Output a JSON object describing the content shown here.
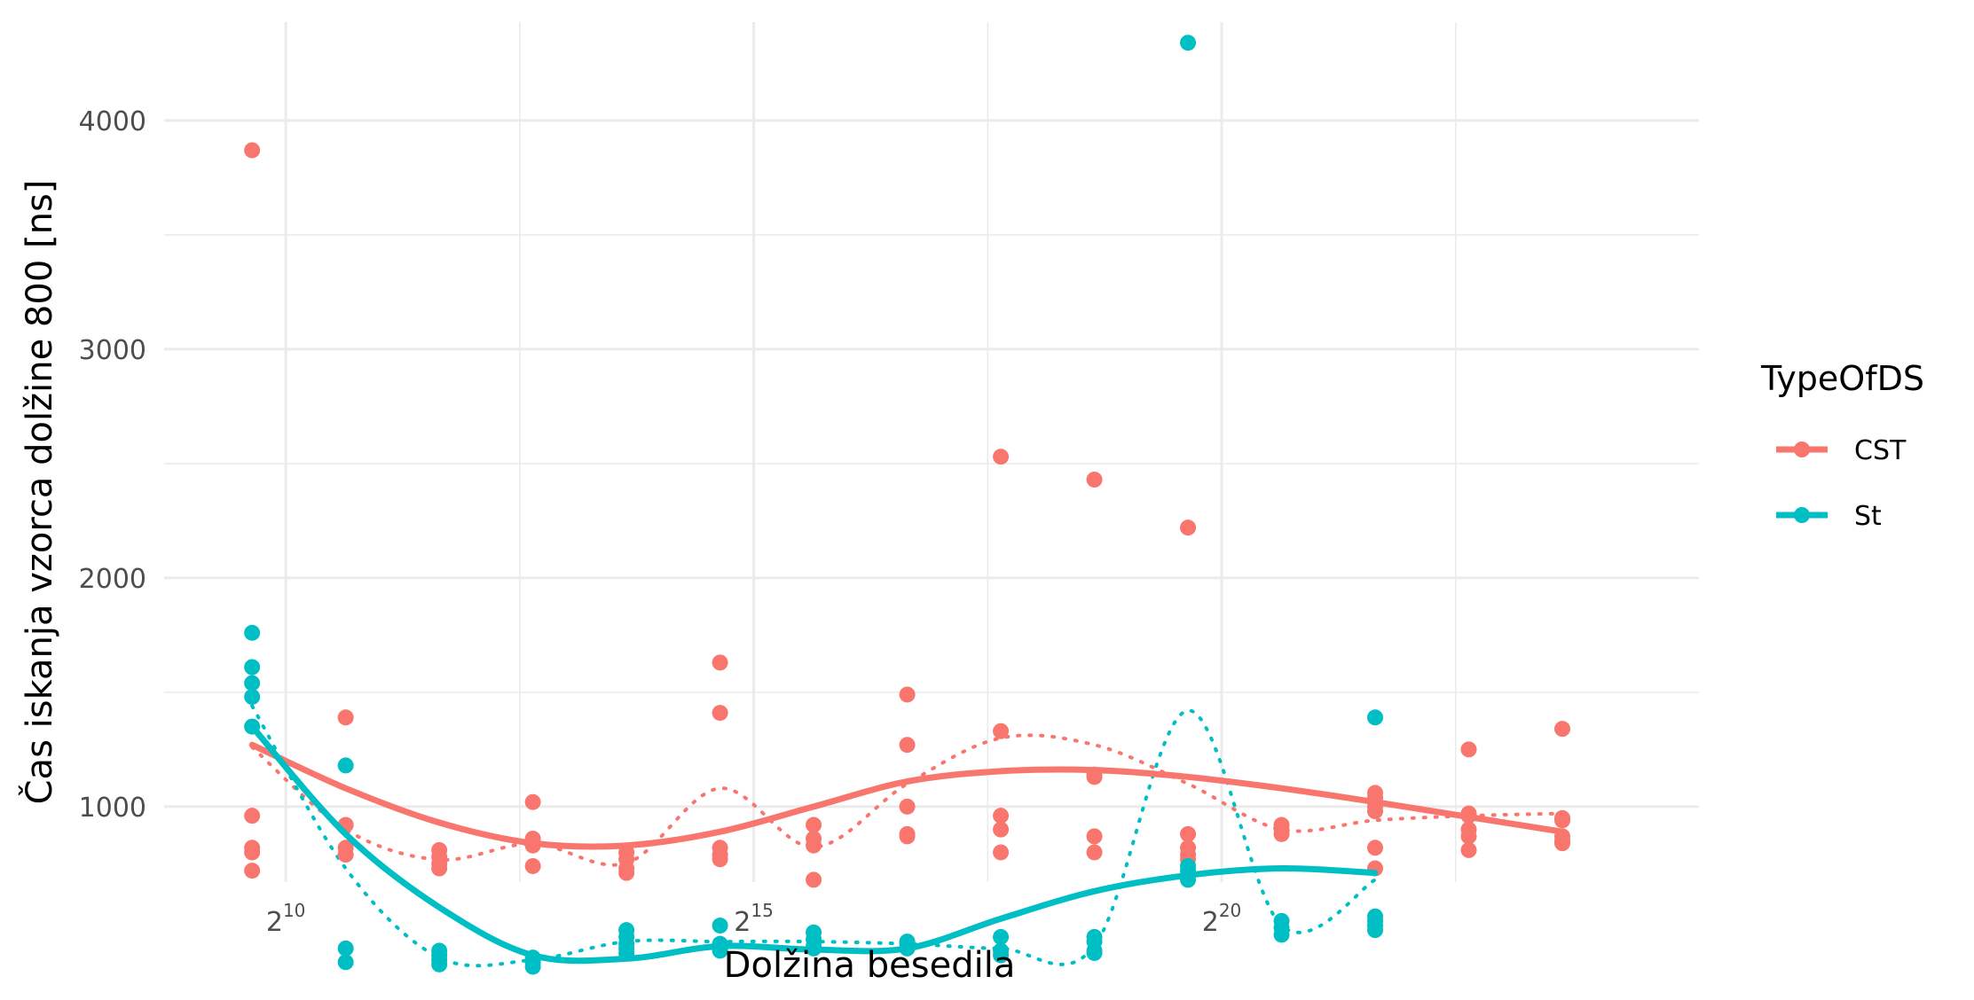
{
  "chart_data": {
    "type": "scatter",
    "xlabel": "Dolžina besedila",
    "ylabel": "Čas iskanja vzorca dolžine 800 [ns]",
    "x_scale": "log2",
    "x_ticks": [
      {
        "value": 1024,
        "base": "2",
        "exp": "10"
      },
      {
        "value": 32768,
        "base": "2",
        "exp": "15"
      },
      {
        "value": 1048576,
        "base": "2",
        "exp": "20"
      }
    ],
    "y_ticks": [
      1000,
      2000,
      3000,
      4000
    ],
    "xlim_log2": [
      8.7,
      25.1
    ],
    "ylim": [
      670,
      4430
    ],
    "grid": true,
    "legend": {
      "title": "TypeOfDS",
      "position": "right"
    },
    "series": [
      {
        "name": "CST",
        "color": "#F8766D",
        "points": [
          [
            9.64,
            3870
          ],
          [
            9.64,
            960
          ],
          [
            9.64,
            820
          ],
          [
            9.64,
            800
          ],
          [
            9.64,
            720
          ],
          [
            10.64,
            1390
          ],
          [
            10.64,
            920
          ],
          [
            10.64,
            820
          ],
          [
            10.64,
            790
          ],
          [
            11.64,
            810
          ],
          [
            11.64,
            780
          ],
          [
            11.64,
            750
          ],
          [
            11.64,
            730
          ],
          [
            12.64,
            1020
          ],
          [
            12.64,
            860
          ],
          [
            12.64,
            830
          ],
          [
            12.64,
            740
          ],
          [
            13.64,
            800
          ],
          [
            13.64,
            770
          ],
          [
            13.64,
            730
          ],
          [
            13.64,
            710
          ],
          [
            14.64,
            1630
          ],
          [
            14.64,
            1410
          ],
          [
            14.64,
            820
          ],
          [
            14.64,
            790
          ],
          [
            14.64,
            770
          ],
          [
            15.64,
            920
          ],
          [
            15.64,
            860
          ],
          [
            15.64,
            830
          ],
          [
            15.64,
            680
          ],
          [
            16.64,
            1490
          ],
          [
            16.64,
            1270
          ],
          [
            16.64,
            1000
          ],
          [
            16.64,
            880
          ],
          [
            16.64,
            870
          ],
          [
            17.64,
            2530
          ],
          [
            17.64,
            1330
          ],
          [
            17.64,
            960
          ],
          [
            17.64,
            900
          ],
          [
            17.64,
            800
          ],
          [
            18.64,
            2430
          ],
          [
            18.64,
            1140
          ],
          [
            18.64,
            1130
          ],
          [
            18.64,
            870
          ],
          [
            18.64,
            800
          ],
          [
            19.64,
            2220
          ],
          [
            19.64,
            880
          ],
          [
            19.64,
            820
          ],
          [
            19.64,
            790
          ],
          [
            19.64,
            770
          ],
          [
            20.64,
            920
          ],
          [
            20.64,
            900
          ],
          [
            20.64,
            880
          ],
          [
            21.64,
            1060
          ],
          [
            21.64,
            1040
          ],
          [
            21.64,
            1000
          ],
          [
            21.64,
            980
          ],
          [
            21.64,
            820
          ],
          [
            21.64,
            730
          ],
          [
            22.64,
            1250
          ],
          [
            22.64,
            970
          ],
          [
            22.64,
            960
          ],
          [
            22.64,
            900
          ],
          [
            22.64,
            870
          ],
          [
            22.64,
            810
          ],
          [
            23.64,
            1340
          ],
          [
            23.64,
            950
          ],
          [
            23.64,
            940
          ],
          [
            23.64,
            870
          ],
          [
            23.64,
            850
          ],
          [
            23.64,
            840
          ]
        ],
        "smooth": [
          [
            9.64,
            1270
          ],
          [
            10.64,
            1080
          ],
          [
            11.64,
            930
          ],
          [
            12.64,
            840
          ],
          [
            13.64,
            830
          ],
          [
            14.64,
            890
          ],
          [
            15.64,
            1000
          ],
          [
            16.64,
            1110
          ],
          [
            17.64,
            1155
          ],
          [
            18.64,
            1160
          ],
          [
            19.64,
            1130
          ],
          [
            20.64,
            1080
          ],
          [
            21.64,
            1020
          ],
          [
            22.64,
            955
          ],
          [
            23.64,
            890
          ]
        ],
        "mean_line": [
          [
            9.64,
            1260
          ],
          [
            10.64,
            900
          ],
          [
            11.64,
            768
          ],
          [
            12.64,
            838
          ],
          [
            13.64,
            753
          ],
          [
            14.64,
            1080
          ],
          [
            15.64,
            823
          ],
          [
            16.64,
            1100
          ],
          [
            17.64,
            1300
          ],
          [
            18.64,
            1270
          ],
          [
            19.64,
            1100
          ],
          [
            20.64,
            900
          ],
          [
            21.64,
            940
          ],
          [
            22.64,
            960
          ],
          [
            23.64,
            970
          ]
        ]
      },
      {
        "name": "St",
        "color": "#00BFC4",
        "points": [
          [
            9.64,
            1760
          ],
          [
            9.64,
            1610
          ],
          [
            9.64,
            1540
          ],
          [
            9.64,
            1480
          ],
          [
            9.64,
            1350
          ],
          [
            10.64,
            1180
          ],
          [
            10.64,
            380
          ],
          [
            10.64,
            320
          ],
          [
            11.64,
            370
          ],
          [
            11.64,
            350
          ],
          [
            11.64,
            330
          ],
          [
            11.64,
            310
          ],
          [
            12.64,
            340
          ],
          [
            12.64,
            320
          ],
          [
            12.64,
            300
          ],
          [
            13.64,
            460
          ],
          [
            13.64,
            430
          ],
          [
            13.64,
            400
          ],
          [
            13.64,
            380
          ],
          [
            13.64,
            360
          ],
          [
            14.64,
            480
          ],
          [
            14.64,
            400
          ],
          [
            14.64,
            380
          ],
          [
            14.64,
            370
          ],
          [
            15.64,
            450
          ],
          [
            15.64,
            420
          ],
          [
            15.64,
            390
          ],
          [
            15.64,
            380
          ],
          [
            16.64,
            410
          ],
          [
            16.64,
            400
          ],
          [
            16.64,
            380
          ],
          [
            17.64,
            430
          ],
          [
            17.64,
            370
          ],
          [
            17.64,
            350
          ],
          [
            18.64,
            430
          ],
          [
            18.64,
            410
          ],
          [
            18.64,
            370
          ],
          [
            18.64,
            360
          ],
          [
            19.64,
            4340
          ],
          [
            19.64,
            740
          ],
          [
            19.64,
            720
          ],
          [
            19.64,
            700
          ],
          [
            19.64,
            680
          ],
          [
            20.64,
            500
          ],
          [
            20.64,
            470
          ],
          [
            20.64,
            440
          ],
          [
            21.64,
            1390
          ],
          [
            21.64,
            520
          ],
          [
            21.64,
            500
          ],
          [
            21.64,
            480
          ],
          [
            21.64,
            460
          ]
        ],
        "smooth": [
          [
            9.64,
            1350
          ],
          [
            10.64,
            880
          ],
          [
            11.64,
            560
          ],
          [
            12.64,
            350
          ],
          [
            13.64,
            335
          ],
          [
            14.64,
            390
          ],
          [
            15.64,
            375
          ],
          [
            16.64,
            380
          ],
          [
            17.64,
            510
          ],
          [
            18.64,
            630
          ],
          [
            19.64,
            700
          ],
          [
            20.64,
            730
          ],
          [
            21.64,
            710
          ]
        ],
        "mean_line": [
          [
            9.64,
            1440
          ],
          [
            10.64,
            730
          ],
          [
            11.64,
            340
          ],
          [
            12.64,
            330
          ],
          [
            13.64,
            410
          ],
          [
            14.64,
            410
          ],
          [
            15.64,
            410
          ],
          [
            16.64,
            400
          ],
          [
            17.64,
            380
          ],
          [
            18.64,
            390
          ],
          [
            19.64,
            1420
          ],
          [
            20.64,
            480
          ],
          [
            21.64,
            680
          ]
        ]
      }
    ]
  }
}
